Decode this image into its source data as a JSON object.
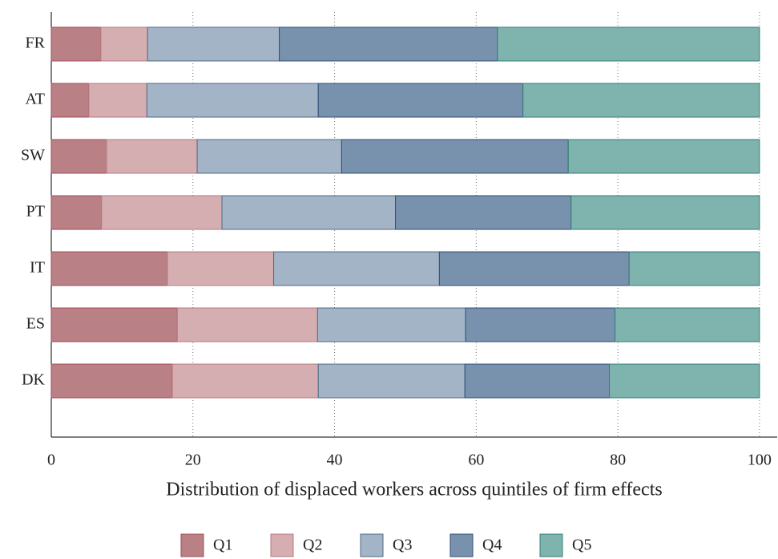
{
  "chart_data": {
    "type": "stacked-barh",
    "xlabel": "Distribution of displaced workers across quintiles of firm effects",
    "categories": [
      "FR",
      "AT",
      "SW",
      "PT",
      "IT",
      "ES",
      "DK"
    ],
    "series": [
      {
        "name": "Q1",
        "color": "#b98186",
        "edge": "#a34a52",
        "values": [
          7.0,
          5.3,
          7.8,
          7.1,
          16.4,
          17.8,
          17.1
        ]
      },
      {
        "name": "Q2",
        "color": "#d5aeb1",
        "edge": "#b8787e",
        "values": [
          6.6,
          8.2,
          12.8,
          17.0,
          15.0,
          19.8,
          20.6
        ]
      },
      {
        "name": "Q3",
        "color": "#a3b4c6",
        "edge": "#4f6a88",
        "values": [
          18.6,
          24.2,
          20.4,
          24.5,
          23.4,
          20.9,
          20.7
        ]
      },
      {
        "name": "Q4",
        "color": "#7892ae",
        "edge": "#2f4f73",
        "values": [
          30.8,
          28.9,
          32.0,
          24.8,
          26.8,
          21.1,
          20.4
        ]
      },
      {
        "name": "Q5",
        "color": "#7fb3ad",
        "edge": "#2f7f76",
        "values": [
          37.0,
          33.4,
          27.0,
          26.6,
          18.4,
          20.4,
          21.2
        ]
      }
    ],
    "xlim": [
      0,
      102.5
    ],
    "xticks": [
      0,
      20,
      40,
      60,
      80,
      100
    ],
    "grid": true,
    "legend": "bottom"
  }
}
